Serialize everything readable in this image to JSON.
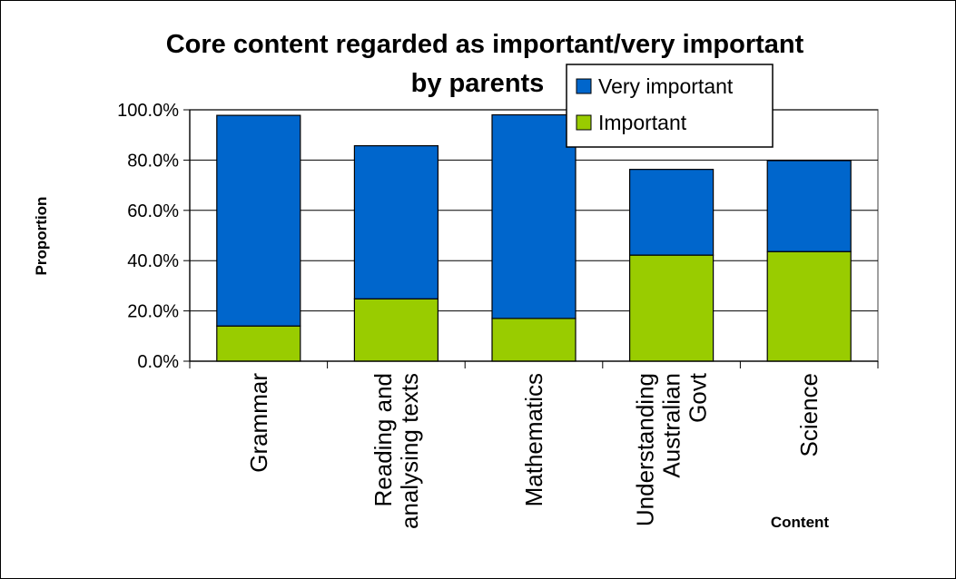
{
  "chart_data": {
    "type": "bar",
    "stacked": true,
    "title": "Core content regarded as important/very important by parents",
    "title_lines": [
      "Core content regarded as important/very important",
      "by parents"
    ],
    "xlabel": "Content",
    "ylabel": "Proportion",
    "ylim": [
      0,
      100
    ],
    "yticks": [
      "0.0%",
      "20.0%",
      "40.0%",
      "60.0%",
      "80.0%",
      "100.0%"
    ],
    "categories": [
      [
        "Grammar"
      ],
      [
        "Reading and",
        "analysing texts"
      ],
      [
        "Mathematics"
      ],
      [
        "Understanding",
        "Australian",
        "Govt"
      ],
      [
        "Science"
      ]
    ],
    "series": [
      {
        "name": "Important",
        "color": "#99cc00",
        "values": [
          14.0,
          24.8,
          17.0,
          42.2,
          43.6
        ]
      },
      {
        "name": "Very important",
        "color": "#0066cc",
        "values": [
          83.8,
          60.9,
          81.0,
          34.1,
          36.2
        ]
      }
    ],
    "legend": {
      "position": "top-right",
      "order": [
        "Very important",
        "Important"
      ]
    },
    "gridlines": true
  }
}
